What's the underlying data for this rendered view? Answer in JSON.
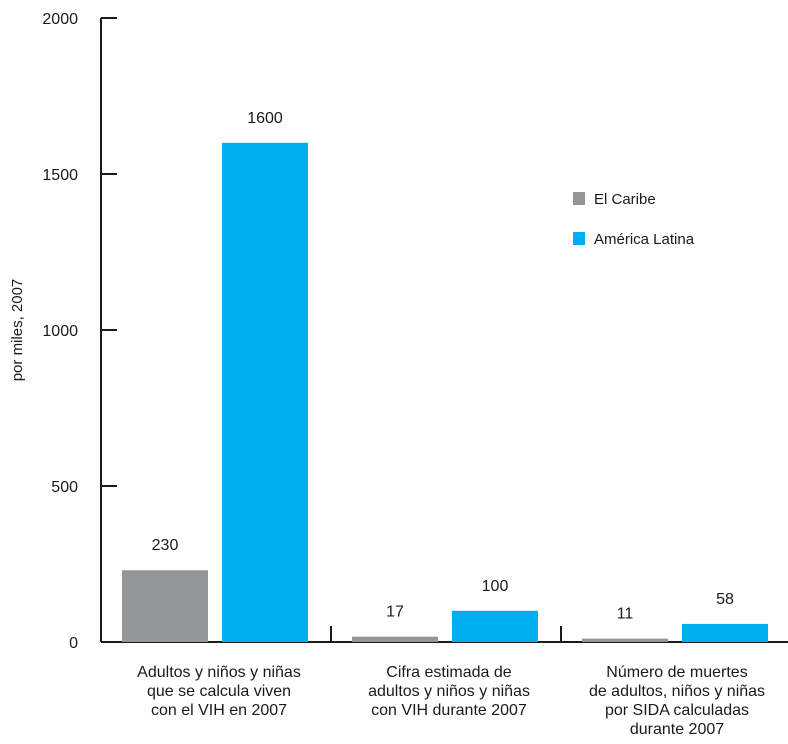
{
  "chart_data": {
    "type": "bar",
    "ylabel": "por miles, 2007",
    "ylim": [
      0,
      2000
    ],
    "yticks": [
      0,
      500,
      1000,
      1500,
      2000
    ],
    "grid": false,
    "legend_position": "top-right",
    "categories": [
      [
        "Adultos y niños y niñas",
        "que se calcula viven",
        "con el VIH en 2007"
      ],
      [
        "Cifra estimada de",
        "adultos y niños y niñas",
        "con VIH durante 2007"
      ],
      [
        "Número de muertes",
        "de adultos, niños y niñas",
        "por SIDA calculadas",
        "durante 2007"
      ]
    ],
    "series": [
      {
        "name": "El Caribe",
        "color": "#939598",
        "values": [
          230,
          17,
          11
        ]
      },
      {
        "name": "América Latina",
        "color": "#00aeef",
        "values": [
          1600,
          100,
          58
        ]
      }
    ]
  }
}
